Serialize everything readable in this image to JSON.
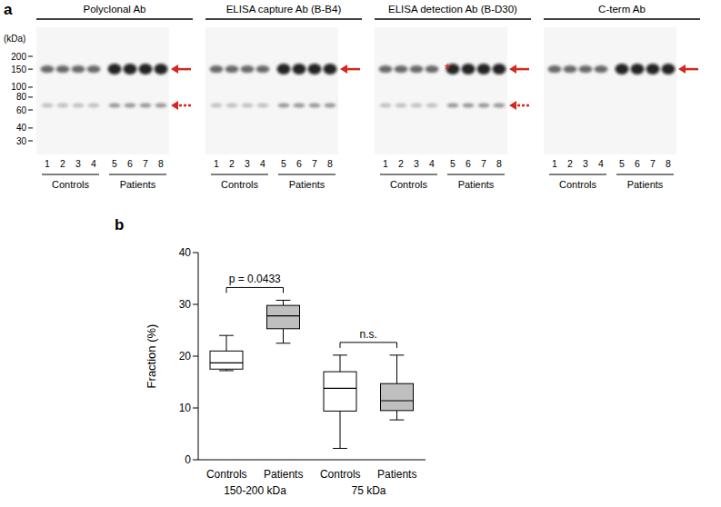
{
  "panel_a": {
    "panel_label": "a",
    "marker_unit": "(kDa)",
    "markers": [
      200,
      150,
      100,
      80,
      60,
      40,
      30
    ],
    "blots": [
      {
        "title": "Polyclonal Ab"
      },
      {
        "title": "ELISA capture Ab (B-B4)"
      },
      {
        "title": "ELISA detection Ab (B-D30)",
        "annotation": "*"
      },
      {
        "title": "C-term Ab"
      }
    ],
    "groups": [
      {
        "label": "Controls",
        "lanes": [
          1,
          2,
          3,
          4
        ]
      },
      {
        "label": "Patients",
        "lanes": [
          5,
          6,
          7,
          8
        ]
      }
    ]
  },
  "chart_data": {
    "type": "box",
    "panel_label": "b",
    "y_label": "Fraction (%)",
    "ylim": [
      0,
      40
    ],
    "yticks": [
      0,
      10,
      20,
      30,
      40
    ],
    "groups": [
      {
        "label": "150-200 kDa",
        "annotation": "p = 0.0433",
        "boxes": [
          {
            "category": "Controls",
            "color": "#ffffff",
            "min": 17.2,
            "q1": 17.5,
            "median": 18.7,
            "q3": 21,
            "max": 24
          },
          {
            "category": "Patients",
            "color": "#bfbfbf",
            "min": 22.5,
            "q1": 25.3,
            "median": 27.8,
            "q3": 29.8,
            "max": 30.8
          }
        ]
      },
      {
        "label": "75 kDa",
        "annotation": "n.s.",
        "boxes": [
          {
            "category": "Controls",
            "color": "#ffffff",
            "min": 2.2,
            "q1": 9.4,
            "median": 13.8,
            "q3": 17,
            "max": 20.2
          },
          {
            "category": "Patients",
            "color": "#bfbfbf",
            "min": 7.7,
            "q1": 9.5,
            "median": 11.4,
            "q3": 14.7,
            "max": 20.2
          }
        ]
      }
    ]
  }
}
